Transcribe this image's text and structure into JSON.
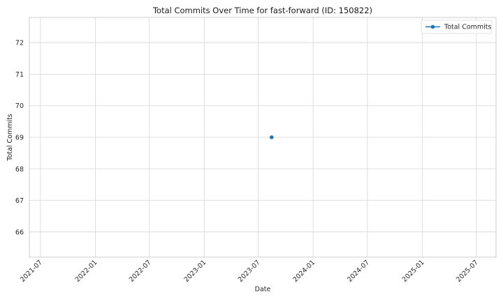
{
  "chart_data": {
    "type": "line",
    "title": "Total Commits Over Time for fast-forward (ID: 150822)",
    "xlabel": "Date",
    "ylabel": "Total Commits",
    "x_ticks": [
      {
        "date": "2021-07-01",
        "label": "2021-07"
      },
      {
        "date": "2022-01-01",
        "label": "2022-01"
      },
      {
        "date": "2022-07-01",
        "label": "2022-07"
      },
      {
        "date": "2023-01-01",
        "label": "2023-01"
      },
      {
        "date": "2023-07-01",
        "label": "2023-07"
      },
      {
        "date": "2024-01-01",
        "label": "2024-01"
      },
      {
        "date": "2024-07-01",
        "label": "2024-07"
      },
      {
        "date": "2025-01-01",
        "label": "2025-01"
      },
      {
        "date": "2025-07-01",
        "label": "2025-07"
      }
    ],
    "y_ticks": [
      66,
      67,
      68,
      69,
      70,
      71,
      72
    ],
    "xlim": [
      "2021-05-25",
      "2025-09-05"
    ],
    "ylim": [
      65.2,
      72.8
    ],
    "grid": true,
    "legend_position": "top-right",
    "series": [
      {
        "name": "Total Commits",
        "color": "#1f77b4",
        "marker": "circle",
        "points": [
          {
            "x": "2023-08-15",
            "y": 69
          }
        ]
      }
    ]
  }
}
